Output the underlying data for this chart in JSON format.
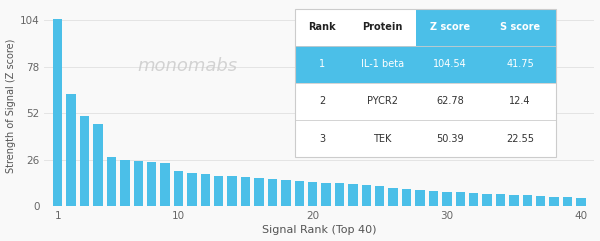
{
  "bar_values": [
    104.54,
    62.78,
    50.39,
    46.0,
    27.5,
    26.0,
    25.5,
    24.8,
    24.2,
    20.0,
    18.5,
    17.8,
    17.2,
    16.8,
    16.3,
    15.8,
    15.3,
    14.8,
    14.3,
    13.8,
    13.2,
    12.8,
    12.3,
    11.8,
    11.2,
    10.5,
    9.8,
    9.2,
    8.7,
    8.2,
    7.8,
    7.4,
    7.0,
    6.7,
    6.4,
    6.1,
    5.8,
    5.5,
    5.2,
    4.8
  ],
  "bar_color": "#4bbfe8",
  "background_color": "#f9f9f9",
  "xlabel": "Signal Rank (Top 40)",
  "ylabel": "Strength of Signal (Z score)",
  "yticks": [
    0,
    26,
    52,
    78,
    104
  ],
  "xticks": [
    1,
    10,
    20,
    30,
    40
  ],
  "xlim": [
    0,
    41
  ],
  "ylim": [
    0,
    112
  ],
  "table_header": [
    "Rank",
    "Protein",
    "Z score",
    "S score"
  ],
  "table_rows": [
    [
      "1",
      "IL-1 beta",
      "104.54",
      "41.75"
    ],
    [
      "2",
      "PYCR2",
      "62.78",
      "12.4"
    ],
    [
      "3",
      "TEK",
      "50.39",
      "22.55"
    ]
  ],
  "header_plain_bg": "#ffffff",
  "header_blue_bg": "#4bbfe8",
  "header_blue_color": "#ffffff",
  "header_plain_color": "#222222",
  "table_row1_bg": "#4bbfe8",
  "table_row1_color": "#ffffff",
  "table_row2_bg": "#ffffff",
  "table_row2_color": "#333333",
  "table_row3_bg": "#ffffff",
  "table_row3_color": "#333333",
  "watermark_text": "monomabs",
  "watermark_color": "#cccccc",
  "grid_color": "#e0e0e0",
  "tick_label_color": "#666666",
  "axis_label_color": "#555555",
  "divider_color": "#cccccc"
}
